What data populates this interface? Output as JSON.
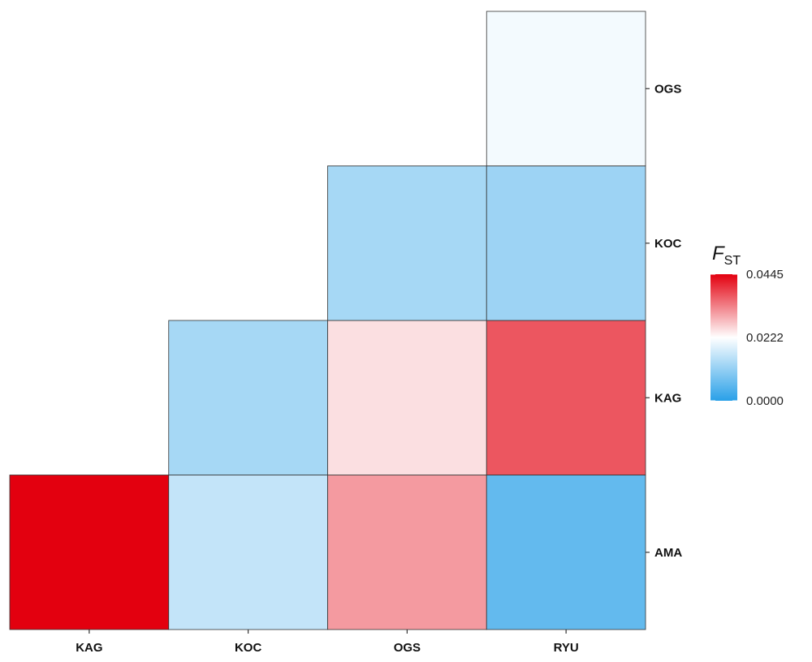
{
  "chart_data": {
    "type": "heatmap",
    "title": "",
    "x_categories": [
      "KAG",
      "KOC",
      "OGS",
      "RYU"
    ],
    "y_categories": [
      "AMA",
      "KAG",
      "KOC",
      "OGS"
    ],
    "cells": [
      {
        "x": "KAG",
        "y": "AMA",
        "value": 0.0445
      },
      {
        "x": "KOC",
        "y": "AMA",
        "value": 0.016
      },
      {
        "x": "OGS",
        "y": "AMA",
        "value": 0.031
      },
      {
        "x": "RYU",
        "y": "AMA",
        "value": 0.006
      },
      {
        "x": "KOC",
        "y": "KAG",
        "value": 0.013
      },
      {
        "x": "OGS",
        "y": "KAG",
        "value": 0.025
      },
      {
        "x": "RYU",
        "y": "KAG",
        "value": 0.037
      },
      {
        "x": "OGS",
        "y": "KOC",
        "value": 0.013
      },
      {
        "x": "RYU",
        "y": "KOC",
        "value": 0.012
      },
      {
        "x": "RYU",
        "y": "OGS",
        "value": 0.021
      }
    ],
    "legend": {
      "title_main": "F",
      "title_sub": "ST",
      "min": 0.0,
      "mid": 0.0222,
      "max": 0.0445,
      "tick_labels": [
        "0.0445",
        "0.0222",
        "0.0000"
      ],
      "low_color": "#29a0e8",
      "mid_color": "#ffffff",
      "high_color": "#e3000f",
      "placement": "right"
    },
    "y_axis_position": "right"
  }
}
